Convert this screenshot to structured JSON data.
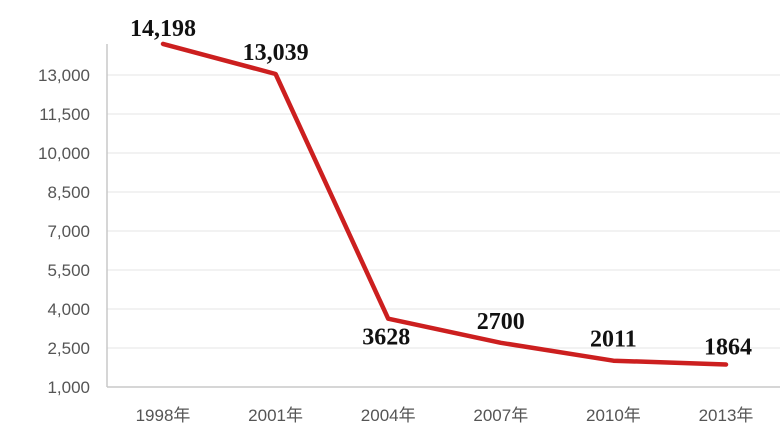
{
  "chart_data": {
    "type": "line",
    "categories": [
      "1998年",
      "2001年",
      "2004年",
      "2007年",
      "2010年",
      "2013年"
    ],
    "series": [
      {
        "values": [
          14198,
          13039,
          3628,
          2700,
          2011,
          1864
        ]
      }
    ],
    "data_labels": [
      "14,198",
      "13,039",
      "3628",
      "2700",
      "2011",
      "1864"
    ],
    "y_ticks": [
      "1,000",
      "2,500",
      "4,000",
      "5,500",
      "7,000",
      "8,500",
      "10,000",
      "11,500",
      "13,000"
    ],
    "ylim": [
      1000,
      14500
    ],
    "grid": true,
    "line_color": "#cc1f1f",
    "title": "",
    "xlabel": "",
    "ylabel": ""
  }
}
